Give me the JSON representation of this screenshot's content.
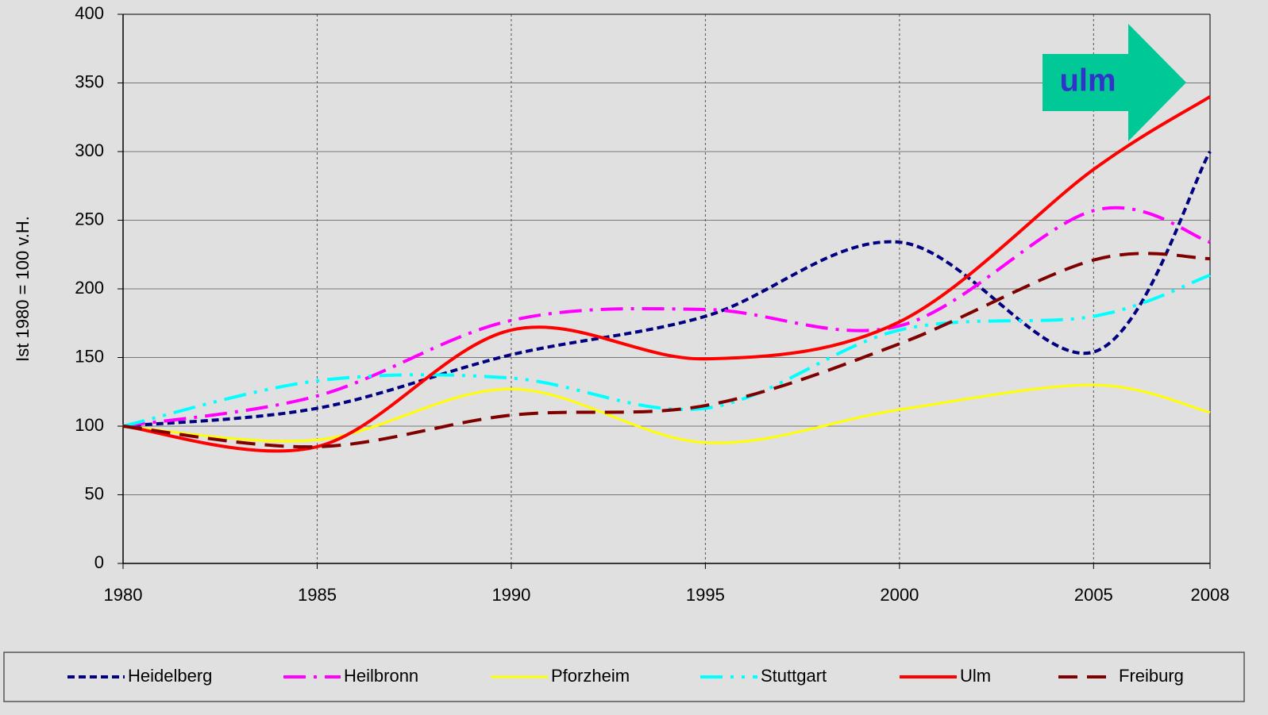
{
  "chart_data": {
    "type": "line",
    "y_label": "Ist 1980 = 100 v.H.",
    "annotation": "ulm",
    "x": [
      1980,
      1985,
      1990,
      1995,
      2000,
      2005,
      2008
    ],
    "xlim": [
      1980,
      2008
    ],
    "xticks": [
      1980,
      1985,
      1990,
      1995,
      2000,
      2005,
      2008
    ],
    "ylim": [
      0,
      400
    ],
    "yticks": [
      0,
      50,
      100,
      150,
      200,
      250,
      300,
      350,
      400
    ],
    "grid": true,
    "legend": "bottom",
    "series": [
      {
        "name": "Heidelberg",
        "color": "#000080",
        "values": [
          100,
          113,
          152,
          180,
          234,
          154,
          300
        ]
      },
      {
        "name": "Heilbronn",
        "color": "#ff00ff",
        "values": [
          100,
          122,
          177,
          185,
          173,
          257,
          234
        ]
      },
      {
        "name": "Pforzheim",
        "color": "#ffff00",
        "values": [
          100,
          90,
          127,
          88,
          112,
          130,
          110
        ]
      },
      {
        "name": "Stuttgart",
        "color": "#00ffff",
        "values": [
          100,
          133,
          135,
          113,
          170,
          180,
          210
        ]
      },
      {
        "name": "Ulm",
        "color": "#ff0000",
        "values": [
          100,
          85,
          170,
          149,
          176,
          287,
          340
        ]
      },
      {
        "name": "Freiburg",
        "color": "#800000",
        "values": [
          100,
          85,
          108,
          115,
          160,
          221,
          222
        ]
      }
    ]
  }
}
